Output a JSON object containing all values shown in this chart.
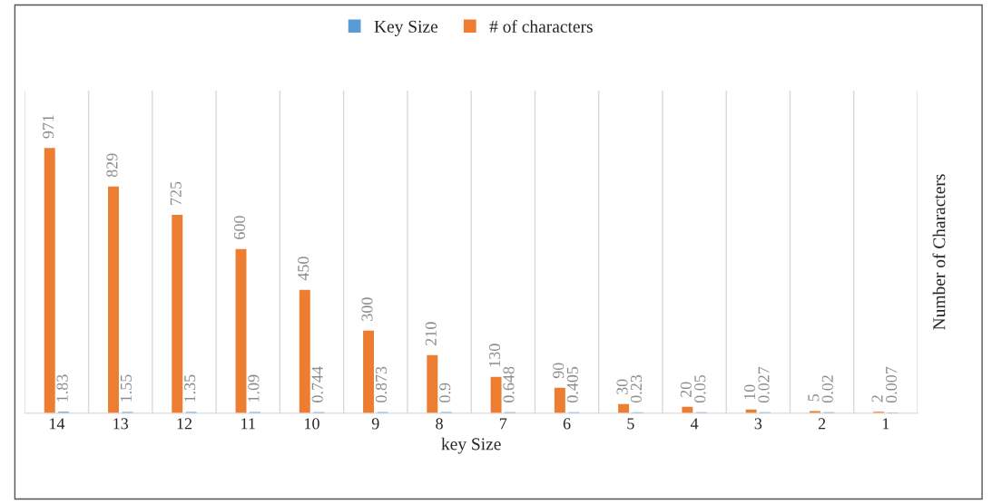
{
  "chart_data": {
    "type": "bar",
    "xlabel": "key Size",
    "ylabel": "Number of Characters",
    "categories": [
      "14",
      "13",
      "12",
      "11",
      "10",
      "9",
      "8",
      "7",
      "6",
      "5",
      "4",
      "3",
      "2",
      "1"
    ],
    "series": [
      {
        "name": "# of characters",
        "color": "#ed7d31",
        "values": [
          971,
          829,
          725,
          600,
          450,
          300,
          210,
          130,
          90,
          30,
          20,
          10,
          5,
          2
        ]
      },
      {
        "name": "Key Size",
        "color": "#5b9bd5",
        "values": [
          1.83,
          1.55,
          1.35,
          1.09,
          0.744,
          0.873,
          0.9,
          0.648,
          0.405,
          0.23,
          0.05,
          0.027,
          0.02,
          0.007
        ]
      }
    ],
    "data_labels": true,
    "grid": "x",
    "legend": "top",
    "tick_labels": "x"
  }
}
